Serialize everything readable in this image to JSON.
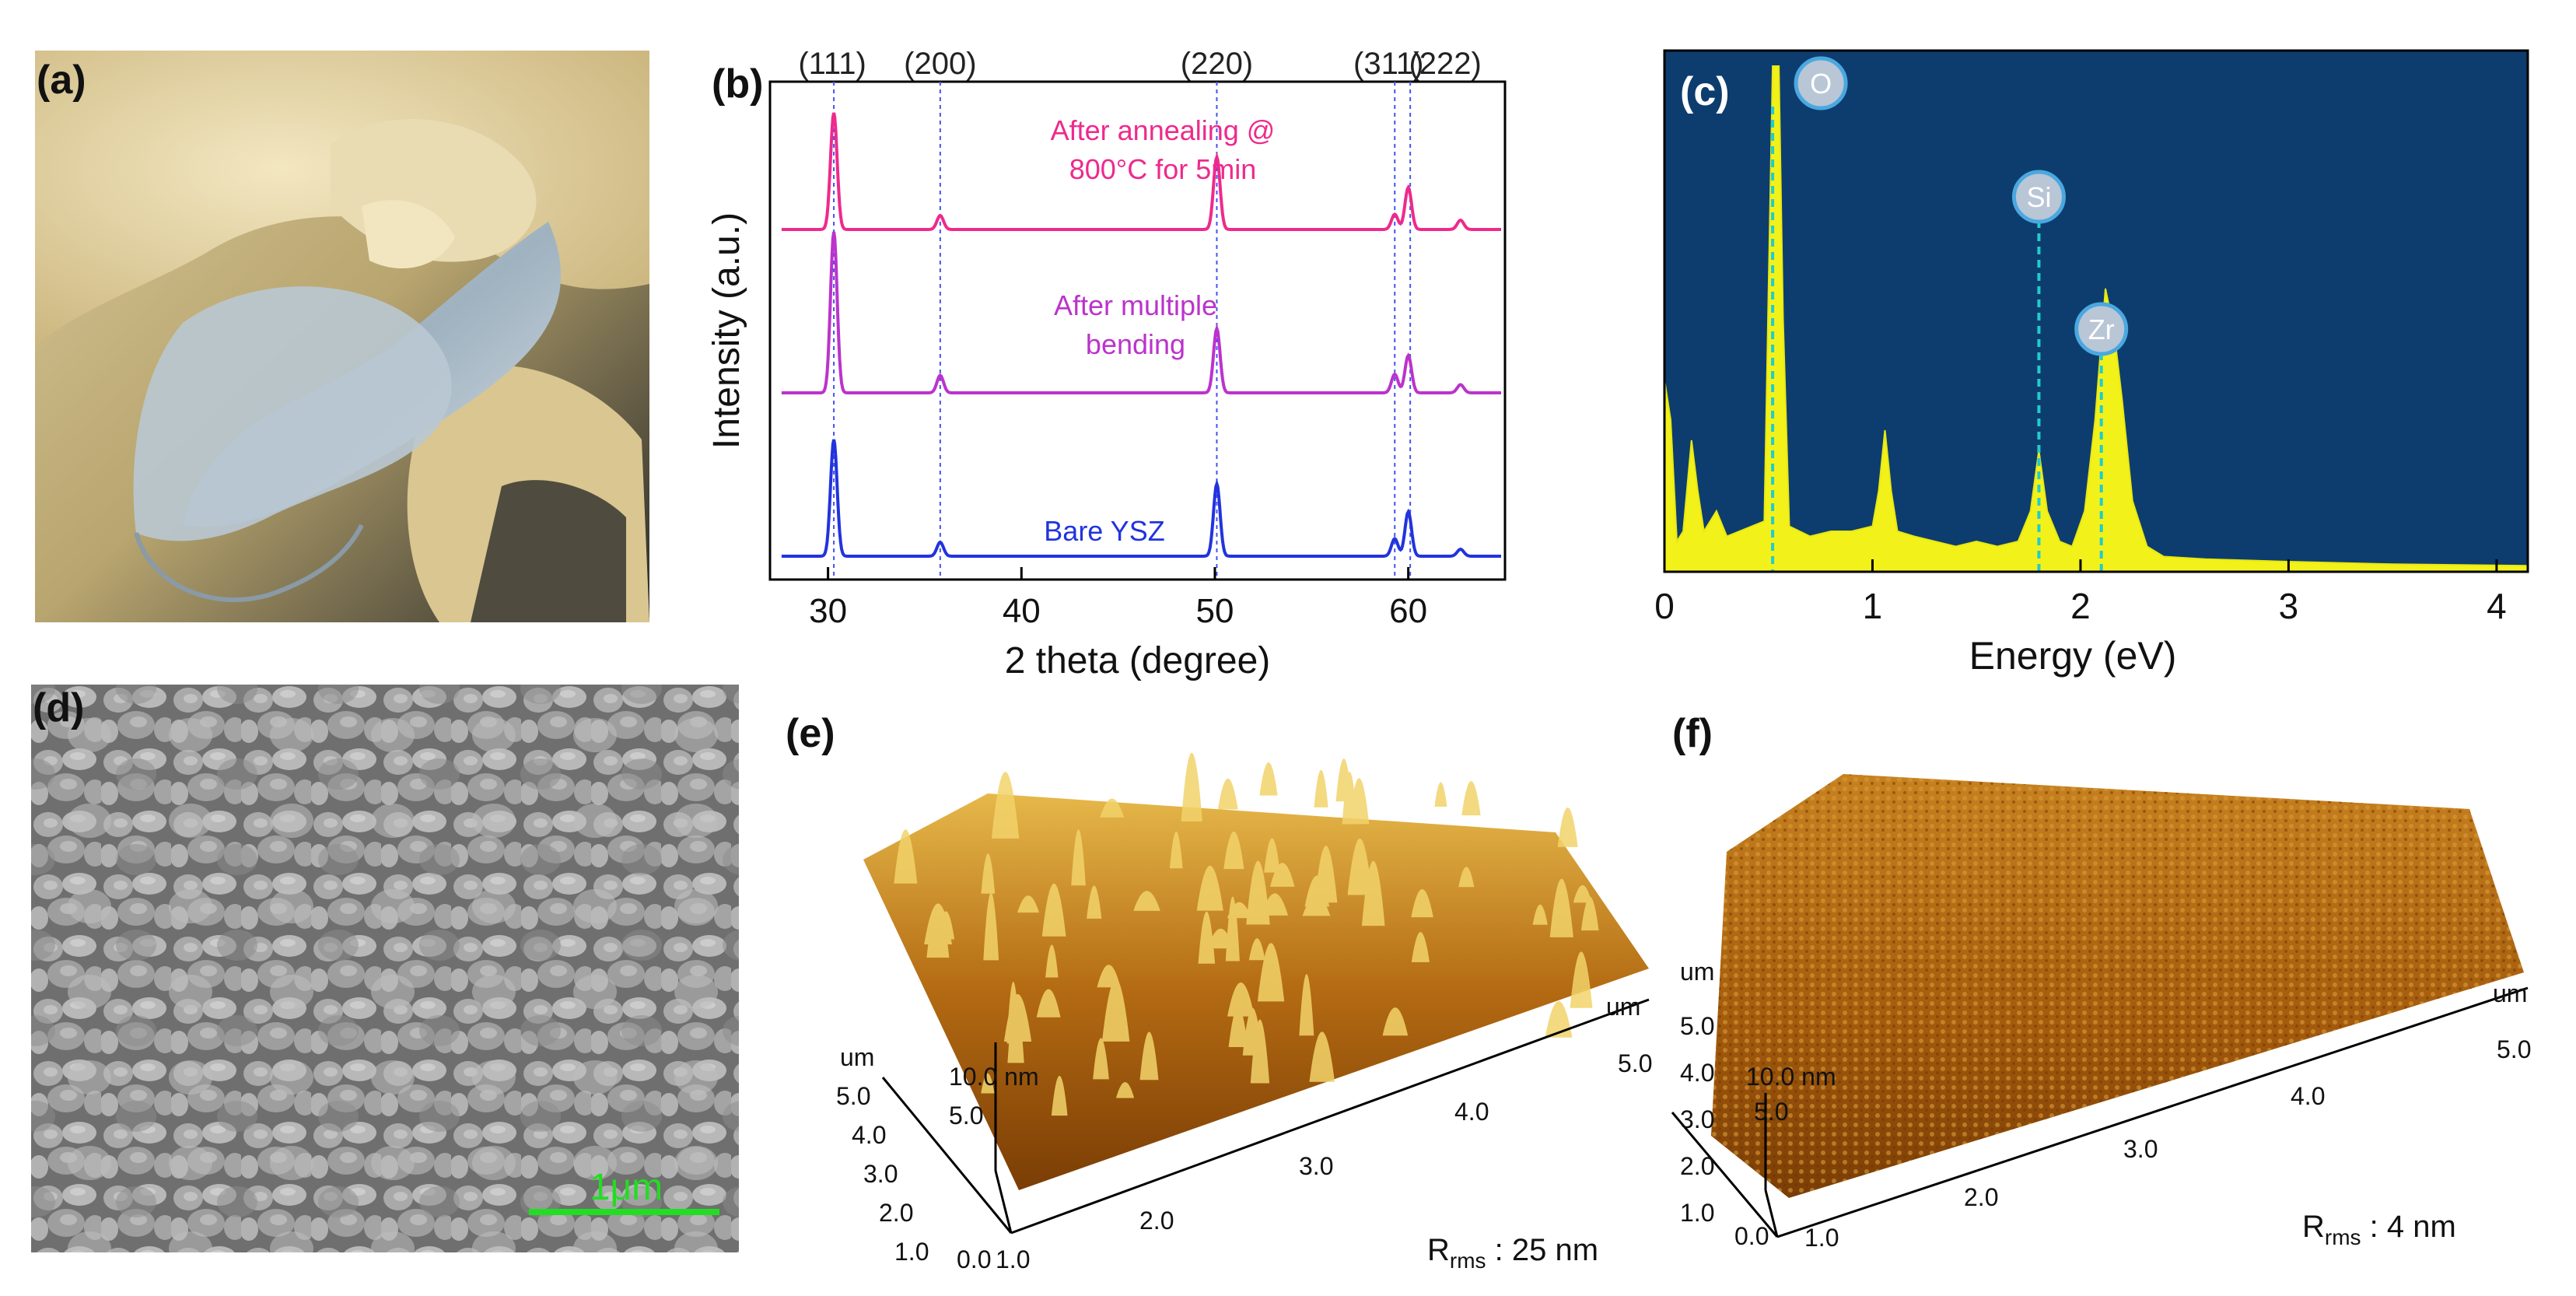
{
  "figure": {
    "panels": {
      "a": {
        "label": "(a)"
      },
      "b": {
        "label": "(b)"
      },
      "c": {
        "label": "(c)"
      },
      "d": {
        "label": "(d)",
        "scale_bar": "1μm"
      },
      "e": {
        "label": "(e)",
        "rms_prefix": "R",
        "rms_sub": "rms",
        "rms_value": " : 25 nm"
      },
      "f": {
        "label": "(f)",
        "rms_prefix": "R",
        "rms_sub": "rms",
        "rms_value": " : 4 nm"
      }
    }
  },
  "chart_data": [
    {
      "panel": "b",
      "type": "line",
      "title": "",
      "xlabel": "2 theta (degree)",
      "ylabel": "Intensity (a.u.)",
      "xlim": [
        27,
        65
      ],
      "xticks": [
        30,
        40,
        50,
        60
      ],
      "peak_labels": [
        {
          "text": "(111)",
          "x": 30.3
        },
        {
          "text": "(200)",
          "x": 35.8
        },
        {
          "text": "(220)",
          "x": 50.1
        },
        {
          "text": "(311)",
          "x": 59.3
        },
        {
          "text": "(222)",
          "x": 60.1
        }
      ],
      "series": [
        {
          "name": "After annealing @ 800°C for 5min",
          "label_lines": [
            "After annealing @",
            "800°C for 5min"
          ],
          "color": "#ee2a8c",
          "peaks": [
            {
              "x": 30.3,
              "h": 1.0
            },
            {
              "x": 35.8,
              "h": 0.12
            },
            {
              "x": 50.1,
              "h": 0.62
            },
            {
              "x": 59.3,
              "h": 0.13
            },
            {
              "x": 60.0,
              "h": 0.36
            },
            {
              "x": 62.7,
              "h": 0.08
            }
          ]
        },
        {
          "name": "After multiple bending",
          "label_lines": [
            "After multiple",
            "bending"
          ],
          "color": "#bb33cc",
          "peaks": [
            {
              "x": 30.3,
              "h": 1.38
            },
            {
              "x": 35.8,
              "h": 0.15
            },
            {
              "x": 50.1,
              "h": 0.55
            },
            {
              "x": 59.3,
              "h": 0.16
            },
            {
              "x": 60.0,
              "h": 0.32
            },
            {
              "x": 62.7,
              "h": 0.07
            }
          ]
        },
        {
          "name": "Bare YSZ",
          "label_lines": [
            "Bare YSZ"
          ],
          "color": "#2233dd",
          "peaks": [
            {
              "x": 30.3,
              "h": 1.0
            },
            {
              "x": 35.8,
              "h": 0.12
            },
            {
              "x": 50.1,
              "h": 0.62
            },
            {
              "x": 59.3,
              "h": 0.15
            },
            {
              "x": 60.0,
              "h": 0.38
            },
            {
              "x": 62.7,
              "h": 0.06
            }
          ]
        }
      ]
    },
    {
      "panel": "c",
      "type": "area",
      "title": "",
      "xlabel": "Energy (eV)",
      "ylabel": "",
      "xlim": [
        0,
        4.15
      ],
      "xticks": [
        0,
        1,
        2,
        3,
        4
      ],
      "background": "#0d3d6e",
      "fill": "#f2f21a",
      "element_labels": [
        {
          "text": "O",
          "x": 0.52
        },
        {
          "text": "Si",
          "x": 1.8
        },
        {
          "text": "Zr",
          "x": 2.1
        }
      ],
      "spectrum": [
        [
          0,
          0.38
        ],
        [
          0.03,
          0.3
        ],
        [
          0.06,
          0.06
        ],
        [
          0.09,
          0.08
        ],
        [
          0.13,
          0.26
        ],
        [
          0.16,
          0.16
        ],
        [
          0.19,
          0.08
        ],
        [
          0.25,
          0.12
        ],
        [
          0.3,
          0.07
        ],
        [
          0.36,
          0.08
        ],
        [
          0.42,
          0.09
        ],
        [
          0.48,
          0.1
        ],
        [
          0.5,
          0.55
        ],
        [
          0.52,
          1.3
        ],
        [
          0.55,
          1.3
        ],
        [
          0.57,
          0.5
        ],
        [
          0.6,
          0.09
        ],
        [
          0.7,
          0.07
        ],
        [
          0.8,
          0.08
        ],
        [
          0.9,
          0.08
        ],
        [
          1.0,
          0.09
        ],
        [
          1.03,
          0.16
        ],
        [
          1.06,
          0.28
        ],
        [
          1.09,
          0.16
        ],
        [
          1.12,
          0.08
        ],
        [
          1.2,
          0.07
        ],
        [
          1.3,
          0.06
        ],
        [
          1.4,
          0.05
        ],
        [
          1.5,
          0.06
        ],
        [
          1.6,
          0.05
        ],
        [
          1.7,
          0.06
        ],
        [
          1.76,
          0.12
        ],
        [
          1.8,
          0.24
        ],
        [
          1.84,
          0.12
        ],
        [
          1.9,
          0.06
        ],
        [
          1.96,
          0.05
        ],
        [
          2.02,
          0.12
        ],
        [
          2.07,
          0.3
        ],
        [
          2.12,
          0.56
        ],
        [
          2.16,
          0.48
        ],
        [
          2.2,
          0.34
        ],
        [
          2.25,
          0.14
        ],
        [
          2.32,
          0.05
        ],
        [
          2.4,
          0.03
        ],
        [
          2.6,
          0.025
        ],
        [
          3.0,
          0.02
        ],
        [
          3.5,
          0.015
        ],
        [
          4.15,
          0.012
        ]
      ]
    }
  ]
}
